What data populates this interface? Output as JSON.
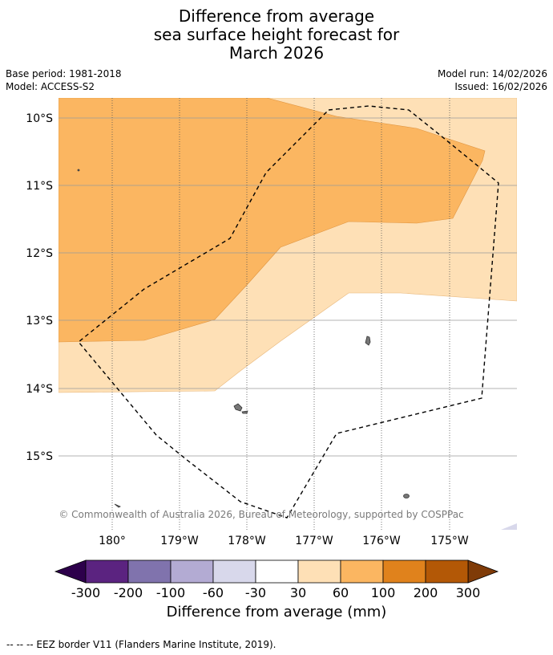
{
  "title": {
    "line1": "Difference from average",
    "line2": "sea surface height forecast for",
    "line3": "March 2026"
  },
  "meta": {
    "base_period": "Base period: 1981-2018",
    "model": "Model: ACCESS-S2",
    "model_run": "Model run: 14/02/2026",
    "issued": "Issued: 16/02/2026"
  },
  "map": {
    "lat_labels": [
      "10°S",
      "11°S",
      "12°S",
      "13°S",
      "14°S",
      "15°S"
    ],
    "lon_labels": [
      "180°",
      "179°W",
      "178°W",
      "177°W",
      "176°W",
      "175°W"
    ],
    "copyright": "© Commonwealth of Australia 2026, Bureau of Meteorology, supported by COSPPac"
  },
  "colorbar": {
    "ticks": [
      "-300",
      "-200",
      "-100",
      "-60",
      "-30",
      "30",
      "60",
      "100",
      "200",
      "300"
    ],
    "colors": [
      "#5b2380",
      "#8073ad",
      "#b3abd3",
      "#d8d8eb",
      "#ffffff",
      "#fee0b6",
      "#fbb661",
      "#e0821c",
      "#b35806"
    ],
    "under_color": "#2d004b",
    "over_color": "#7f3b08",
    "label": "Difference from average (mm)"
  },
  "legend": {
    "eez_note": "--  --  -- EEZ border V11 (Flanders Marine Institute, 2019)."
  }
}
